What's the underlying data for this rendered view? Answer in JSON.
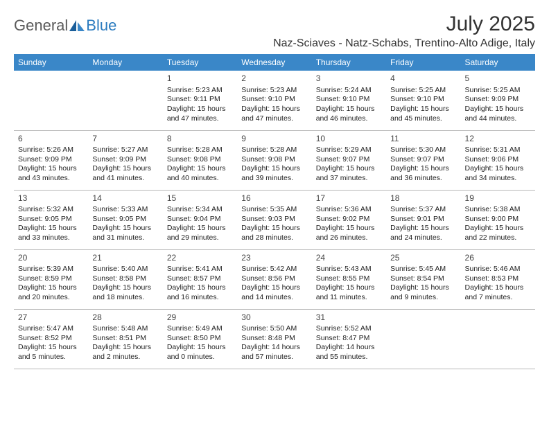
{
  "logo": {
    "general": "General",
    "blue": "Blue"
  },
  "title": "July 2025",
  "location": "Naz-Sciaves - Natz-Schabs, Trentino-Alto Adige, Italy",
  "header_bg": "#3a87c8",
  "weekdays": [
    "Sunday",
    "Monday",
    "Tuesday",
    "Wednesday",
    "Thursday",
    "Friday",
    "Saturday"
  ],
  "first_weekday_index": 2,
  "days": [
    {
      "n": 1,
      "sr": "5:23 AM",
      "ss": "9:11 PM",
      "dl": "15 hours and 47 minutes."
    },
    {
      "n": 2,
      "sr": "5:23 AM",
      "ss": "9:10 PM",
      "dl": "15 hours and 47 minutes."
    },
    {
      "n": 3,
      "sr": "5:24 AM",
      "ss": "9:10 PM",
      "dl": "15 hours and 46 minutes."
    },
    {
      "n": 4,
      "sr": "5:25 AM",
      "ss": "9:10 PM",
      "dl": "15 hours and 45 minutes."
    },
    {
      "n": 5,
      "sr": "5:25 AM",
      "ss": "9:09 PM",
      "dl": "15 hours and 44 minutes."
    },
    {
      "n": 6,
      "sr": "5:26 AM",
      "ss": "9:09 PM",
      "dl": "15 hours and 43 minutes."
    },
    {
      "n": 7,
      "sr": "5:27 AM",
      "ss": "9:09 PM",
      "dl": "15 hours and 41 minutes."
    },
    {
      "n": 8,
      "sr": "5:28 AM",
      "ss": "9:08 PM",
      "dl": "15 hours and 40 minutes."
    },
    {
      "n": 9,
      "sr": "5:28 AM",
      "ss": "9:08 PM",
      "dl": "15 hours and 39 minutes."
    },
    {
      "n": 10,
      "sr": "5:29 AM",
      "ss": "9:07 PM",
      "dl": "15 hours and 37 minutes."
    },
    {
      "n": 11,
      "sr": "5:30 AM",
      "ss": "9:07 PM",
      "dl": "15 hours and 36 minutes."
    },
    {
      "n": 12,
      "sr": "5:31 AM",
      "ss": "9:06 PM",
      "dl": "15 hours and 34 minutes."
    },
    {
      "n": 13,
      "sr": "5:32 AM",
      "ss": "9:05 PM",
      "dl": "15 hours and 33 minutes."
    },
    {
      "n": 14,
      "sr": "5:33 AM",
      "ss": "9:05 PM",
      "dl": "15 hours and 31 minutes."
    },
    {
      "n": 15,
      "sr": "5:34 AM",
      "ss": "9:04 PM",
      "dl": "15 hours and 29 minutes."
    },
    {
      "n": 16,
      "sr": "5:35 AM",
      "ss": "9:03 PM",
      "dl": "15 hours and 28 minutes."
    },
    {
      "n": 17,
      "sr": "5:36 AM",
      "ss": "9:02 PM",
      "dl": "15 hours and 26 minutes."
    },
    {
      "n": 18,
      "sr": "5:37 AM",
      "ss": "9:01 PM",
      "dl": "15 hours and 24 minutes."
    },
    {
      "n": 19,
      "sr": "5:38 AM",
      "ss": "9:00 PM",
      "dl": "15 hours and 22 minutes."
    },
    {
      "n": 20,
      "sr": "5:39 AM",
      "ss": "8:59 PM",
      "dl": "15 hours and 20 minutes."
    },
    {
      "n": 21,
      "sr": "5:40 AM",
      "ss": "8:58 PM",
      "dl": "15 hours and 18 minutes."
    },
    {
      "n": 22,
      "sr": "5:41 AM",
      "ss": "8:57 PM",
      "dl": "15 hours and 16 minutes."
    },
    {
      "n": 23,
      "sr": "5:42 AM",
      "ss": "8:56 PM",
      "dl": "15 hours and 14 minutes."
    },
    {
      "n": 24,
      "sr": "5:43 AM",
      "ss": "8:55 PM",
      "dl": "15 hours and 11 minutes."
    },
    {
      "n": 25,
      "sr": "5:45 AM",
      "ss": "8:54 PM",
      "dl": "15 hours and 9 minutes."
    },
    {
      "n": 26,
      "sr": "5:46 AM",
      "ss": "8:53 PM",
      "dl": "15 hours and 7 minutes."
    },
    {
      "n": 27,
      "sr": "5:47 AM",
      "ss": "8:52 PM",
      "dl": "15 hours and 5 minutes."
    },
    {
      "n": 28,
      "sr": "5:48 AM",
      "ss": "8:51 PM",
      "dl": "15 hours and 2 minutes."
    },
    {
      "n": 29,
      "sr": "5:49 AM",
      "ss": "8:50 PM",
      "dl": "15 hours and 0 minutes."
    },
    {
      "n": 30,
      "sr": "5:50 AM",
      "ss": "8:48 PM",
      "dl": "14 hours and 57 minutes."
    },
    {
      "n": 31,
      "sr": "5:52 AM",
      "ss": "8:47 PM",
      "dl": "14 hours and 55 minutes."
    }
  ],
  "labels": {
    "sunrise": "Sunrise:",
    "sunset": "Sunset:",
    "daylight": "Daylight:"
  }
}
